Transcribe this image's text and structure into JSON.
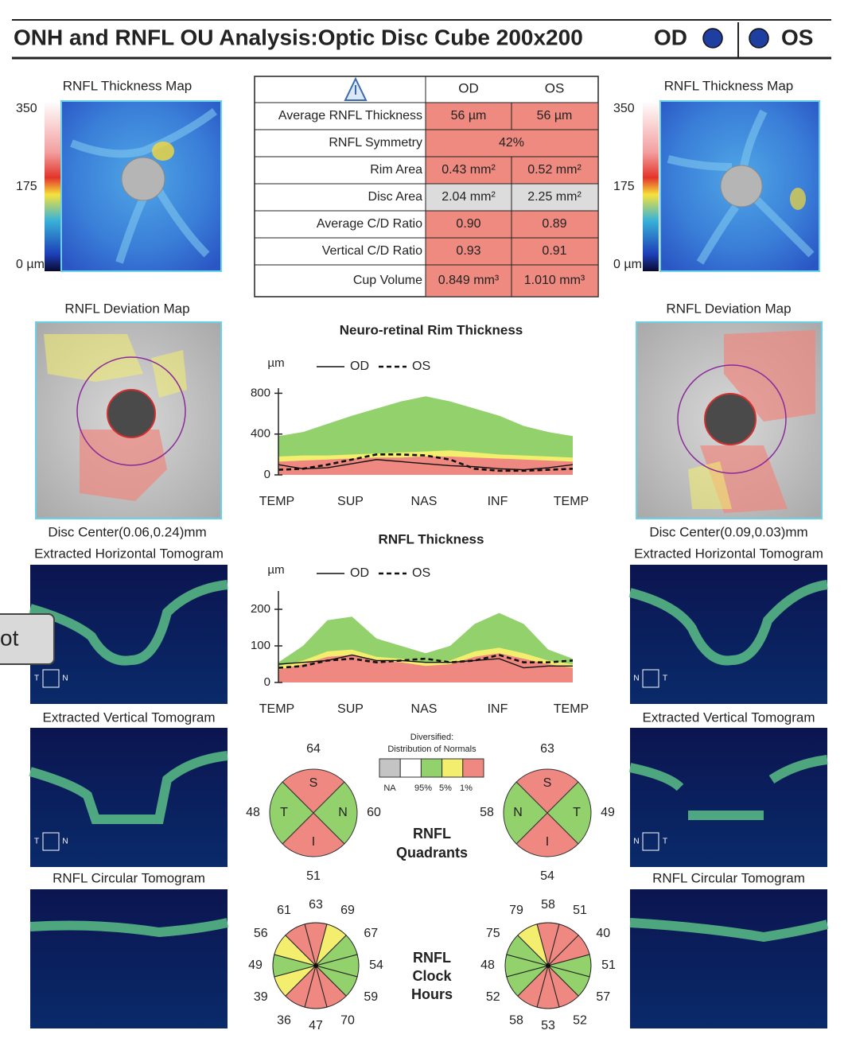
{
  "header": {
    "title": "ONH and RNFL OU Analysis:Optic Disc Cube 200x200",
    "od": "OD",
    "os": "OS",
    "eye_color": "#1f3fa0"
  },
  "overlay_fragment": "ot",
  "od_panel": {
    "thickness_map": {
      "title": "RNFL Thickness Map",
      "scale_lim": [
        0,
        350
      ],
      "scale_ticks": [
        350,
        175,
        {
          "value": 0,
          "label": "0 µm"
        }
      ]
    },
    "deviation_map_title": "RNFL Deviation Map",
    "disc_center": "Disc Center(0.06,0.24)mm",
    "horizontal_title": "Extracted Horizontal Tomogram",
    "horizontal_orientation": [
      "T",
      "N"
    ],
    "vertical_title": "Extracted Vertical Tomogram",
    "vertical_orientation": [
      "T",
      "N"
    ],
    "circular_title": "RNFL Circular Tomogram"
  },
  "os_panel": {
    "thickness_map": {
      "title": "RNFL Thickness Map",
      "scale_lim": [
        0,
        350
      ],
      "scale_ticks": [
        350,
        175,
        {
          "value": 0,
          "label": "0 µm"
        }
      ]
    },
    "deviation_map_title": "RNFL Deviation Map",
    "disc_center": "Disc Center(0.09,0.03)mm",
    "horizontal_title": "Extracted Horizontal Tomogram",
    "horizontal_orientation": [
      "N",
      "T"
    ],
    "vertical_title": "Extracted Vertical Tomogram",
    "vertical_orientation": [
      "N",
      "T"
    ],
    "circular_title": "RNFL Circular Tomogram"
  },
  "table": {
    "header": [
      "OD",
      "OS"
    ],
    "rows": [
      {
        "label": "Average RNFL Thickness",
        "od": "56 µm",
        "os": "56 µm",
        "color": "#ee8a80"
      },
      {
        "label": "RNFL Symmetry",
        "both": "42%",
        "color": "#ee8a80"
      },
      {
        "label": "Rim Area",
        "od": "0.43 mm²",
        "os": "0.52 mm²",
        "color": "#ee8a80"
      },
      {
        "label": "Disc Area",
        "od": "2.04 mm²",
        "os": "2.25 mm²",
        "color": "#dcdcdc"
      },
      {
        "label": "Average C/D Ratio",
        "od": "0.90",
        "os": "0.89",
        "color": "#ee8a80"
      },
      {
        "label": "Vertical C/D Ratio",
        "od": "0.93",
        "os": "0.91",
        "color": "#ee8a80"
      },
      {
        "label": "Cup Volume",
        "od": "0.849 mm³",
        "os": "1.010 mm³",
        "color": "#ee8a80"
      }
    ]
  },
  "charts": [
    {
      "title": "Neuro-retinal Rim Thickness",
      "unit": "µm",
      "ylim": [
        0,
        850
      ],
      "yticks": [
        0,
        400,
        800
      ],
      "categories": [
        "TEMP",
        "SUP",
        "NAS",
        "INF",
        "TEMP"
      ],
      "band_colors": {
        "p95": "#92d16c",
        "p5": "#f3ee6d",
        "p1": "#ee8880"
      },
      "normals": {
        "p95": [
          380,
          420,
          500,
          580,
          650,
          720,
          770,
          720,
          650,
          580,
          480,
          420,
          380
        ],
        "p5": [
          180,
          190,
          190,
          200,
          210,
          220,
          230,
          240,
          220,
          200,
          190,
          180,
          170
        ],
        "p1": [
          130,
          140,
          150,
          160,
          170,
          170,
          180,
          180,
          170,
          160,
          150,
          140,
          130
        ]
      },
      "series": [
        {
          "name": "OD",
          "style": "solid",
          "color": "#111111",
          "values": [
            100,
            60,
            70,
            110,
            150,
            130,
            110,
            90,
            80,
            60,
            50,
            70,
            100
          ]
        },
        {
          "name": "OS",
          "style": "dashed",
          "color": "#111111",
          "values": [
            50,
            60,
            100,
            150,
            200,
            200,
            190,
            150,
            60,
            40,
            40,
            50,
            60
          ]
        }
      ]
    },
    {
      "title": "RNFL Thickness",
      "unit": "µm",
      "ylim": [
        0,
        250
      ],
      "yticks": [
        0,
        100,
        200
      ],
      "categories": [
        "TEMP",
        "SUP",
        "NAS",
        "INF",
        "TEMP"
      ],
      "band_colors": {
        "p95": "#92d16c",
        "p5": "#f3ee6d",
        "p1": "#ee8880"
      },
      "normals": {
        "p95": [
          55,
          100,
          170,
          180,
          120,
          100,
          80,
          100,
          160,
          190,
          160,
          90,
          65
        ],
        "p5": [
          45,
          60,
          85,
          90,
          70,
          65,
          55,
          60,
          85,
          95,
          80,
          60,
          50
        ],
        "p1": [
          35,
          50,
          70,
          75,
          60,
          55,
          45,
          50,
          70,
          80,
          65,
          50,
          40
        ]
      },
      "series": [
        {
          "name": "OD",
          "style": "solid",
          "color": "#111111",
          "values": [
            50,
            55,
            60,
            75,
            60,
            60,
            55,
            55,
            60,
            65,
            40,
            45,
            45
          ]
        },
        {
          "name": "OS",
          "style": "dashed",
          "color": "#111111",
          "values": [
            40,
            45,
            60,
            65,
            55,
            60,
            65,
            55,
            60,
            75,
            55,
            55,
            60
          ]
        }
      ]
    }
  ],
  "normals_legend": {
    "title": [
      "Diversified:",
      "Distribution of Normals"
    ],
    "colors": [
      "#c4c4c4",
      "#ffffff",
      "#92d16c",
      "#f3ee6d",
      "#ee8880"
    ],
    "labels": [
      "NA",
      "95%",
      "5%",
      "1%"
    ]
  },
  "quadrants": {
    "label": [
      "RNFL",
      "Quadrants"
    ],
    "od": [
      {
        "letter": "S",
        "value": 64,
        "color": "#ee8880"
      },
      {
        "letter": "N",
        "value": 60,
        "color": "#92d16c"
      },
      {
        "letter": "I",
        "value": 51,
        "color": "#ee8880"
      },
      {
        "letter": "T",
        "value": 48,
        "color": "#92d16c"
      }
    ],
    "os": [
      {
        "letter": "S",
        "value": 63,
        "color": "#ee8880"
      },
      {
        "letter": "T",
        "value": 49,
        "color": "#92d16c"
      },
      {
        "letter": "I",
        "value": 54,
        "color": "#ee8880"
      },
      {
        "letter": "N",
        "value": 58,
        "color": "#92d16c"
      }
    ]
  },
  "clock_hours": {
    "label": [
      "RNFL",
      "Clock",
      "Hours"
    ],
    "od": {
      "values": [
        63,
        69,
        67,
        54,
        59,
        70,
        47,
        36,
        39,
        49,
        56,
        61
      ],
      "colors": [
        "#ee8880",
        "#f3ee6d",
        "#92d16c",
        "#92d16c",
        "#92d16c",
        "#ee8880",
        "#ee8880",
        "#ee8880",
        "#f3ee6d",
        "#92d16c",
        "#f3ee6d",
        "#ee8880"
      ]
    },
    "os": {
      "values": [
        58,
        51,
        40,
        51,
        57,
        52,
        53,
        58,
        52,
        48,
        75,
        79
      ],
      "colors": [
        "#ee8880",
        "#ee8880",
        "#ee8880",
        "#92d16c",
        "#92d16c",
        "#ee8880",
        "#ee8880",
        "#ee8880",
        "#92d16c",
        "#92d16c",
        "#92d16c",
        "#f3ee6d"
      ]
    }
  }
}
